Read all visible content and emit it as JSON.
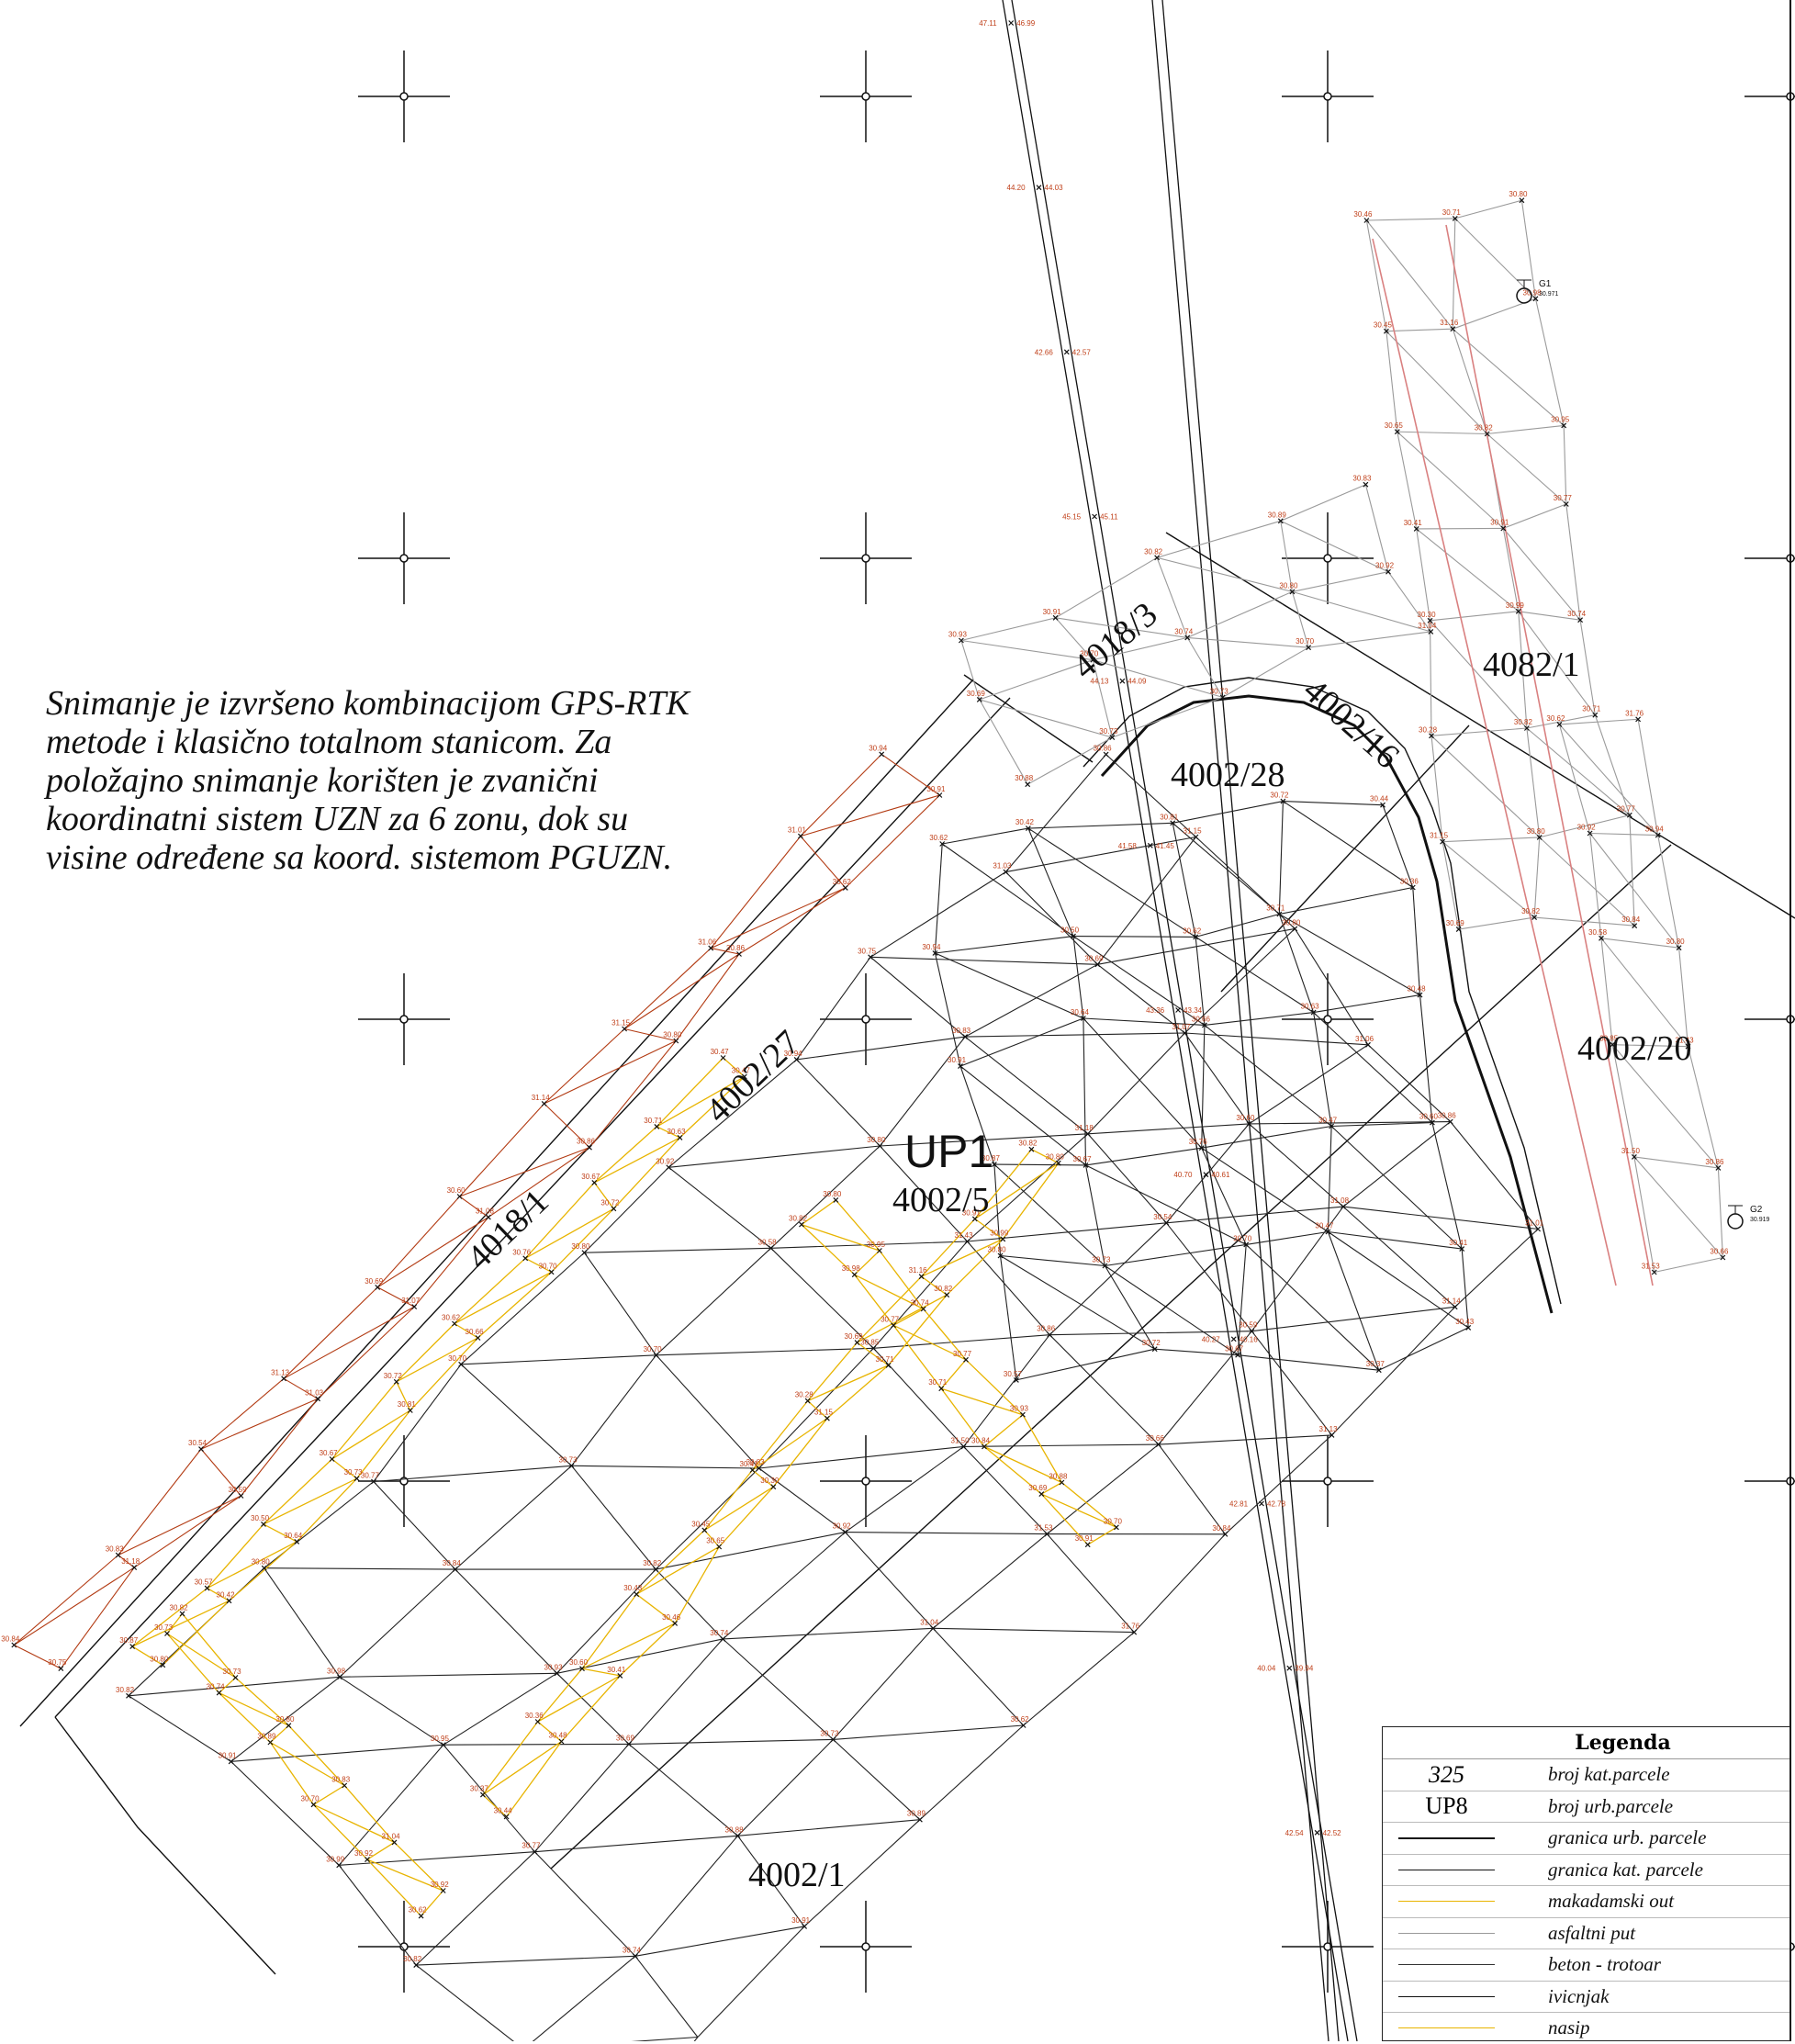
{
  "note": {
    "lines": [
      "Snimanje je izvršeno kombinacijom GPS-RTK",
      "metode i klasično totalnom stanicom. Za",
      "položajno snimanje korišten je zvanični",
      "koordinatni sistem  UZN za 6 zonu, dok su",
      "visine određene sa koord. sistemom PGUZN."
    ]
  },
  "map": {
    "urban_parcel": "UP1",
    "parcels": [
      "4002/5",
      "4018/3",
      "4002/28",
      "4002/16",
      "4082/1",
      "4002/27",
      "4018/1",
      "4002/20",
      "4002/1"
    ],
    "stations": [
      {
        "name": "G1",
        "value": "30.971"
      },
      {
        "name": "G2",
        "value": "30.919"
      }
    ],
    "road_elevations": [
      "47.11",
      "46.99",
      "44.20",
      "44.03",
      "42.66",
      "42.57",
      "45.15",
      "45.11",
      "44.13",
      "44.09",
      "41.58",
      "41.45",
      "43.36",
      "43.34",
      "40.70",
      "40.61",
      "40.27",
      "40.16",
      "42.81",
      "42.78",
      "40.04",
      "39.94",
      "42.54",
      "42.52"
    ],
    "spot_heights": [
      "30.82",
      "30.91",
      "30.99",
      "30.82",
      "30.80",
      "30.82",
      "30.80",
      "30.98",
      "30.95",
      "30.77",
      "30.74",
      "30.71",
      "30.77",
      "30.84",
      "30.93",
      "30.69",
      "30.88",
      "30.91",
      "30.70",
      "30.73",
      "30.82",
      "30.74",
      "30.73",
      "30.89",
      "30.80",
      "30.70",
      "30.83",
      "30.92",
      "31.04",
      "30.62",
      "30.92",
      "30.58",
      "30.85",
      "31.50",
      "31.53",
      "31.76",
      "30.94",
      "30.80",
      "31.43",
      "30.86",
      "30.66",
      "30.84",
      "30.75",
      "30.83",
      "31.18",
      "30.54",
      "30.59",
      "31.13",
      "31.03",
      "30.69",
      "31.07",
      "30.60",
      "31.08",
      "31.14",
      "30.86",
      "31.15",
      "30.80",
      "31.06",
      "30.86",
      "31.01",
      "30.62",
      "30.94",
      "30.91",
      "30.87",
      "30.80",
      "30.57",
      "30.42",
      "30.50",
      "30.64",
      "30.67",
      "30.73",
      "30.72",
      "30.81",
      "30.62",
      "30.66",
      "30.76",
      "30.70",
      "30.67",
      "30.72",
      "30.71",
      "30.63",
      "30.47",
      "30.47",
      "30.37",
      "30.44",
      "30.36",
      "30.48",
      "30.60",
      "30.41",
      "30.43",
      "30.46",
      "30.45",
      "30.65",
      "30.41",
      "30.30",
      "30.28",
      "31.15",
      "30.69",
      "30.71",
      "31.16"
    ],
    "colors": {
      "black": "#111111",
      "gray": "#9a9a9a",
      "yellow": "#e8b400",
      "red_brown": "#b23a12",
      "orange_label": "#c0401a",
      "pink": "#d98080"
    }
  },
  "legend": {
    "title": "Legenda",
    "items": [
      {
        "symbol": "325",
        "label": "broj kat.parcele"
      },
      {
        "symbol": "UP8",
        "label": "broj urb.parcele"
      },
      {
        "symbol": "",
        "label": "granica urb. parcele"
      },
      {
        "symbol": "",
        "label": "granica kat. parcele"
      },
      {
        "symbol": "",
        "label": "makadamski out"
      },
      {
        "symbol": "",
        "label": "asfaltni  put"
      },
      {
        "symbol": "",
        "label": "beton - trotoar"
      },
      {
        "symbol": "",
        "label": "ivicnjak"
      },
      {
        "symbol": "",
        "label": "nasip"
      }
    ]
  }
}
